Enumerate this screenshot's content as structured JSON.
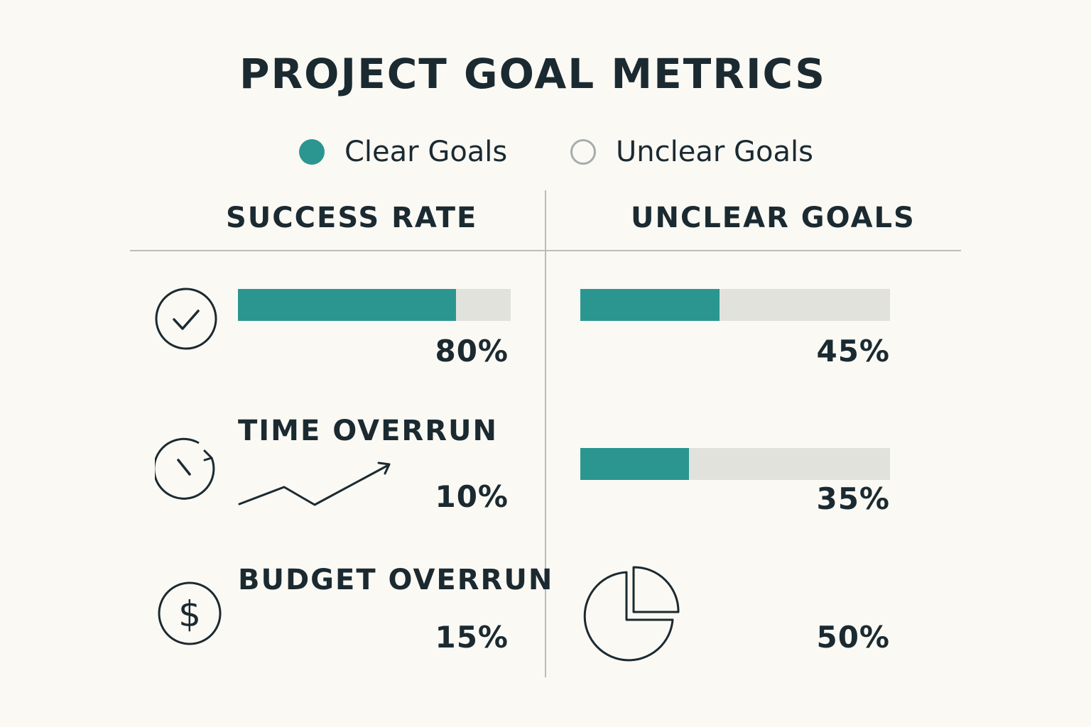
{
  "title": "PROJECT GOAL METRICS",
  "legend": [
    {
      "label": "Clear Goals",
      "style": "filled",
      "color": "#2b9690"
    },
    {
      "label": "Unclear Goals",
      "style": "outline",
      "color": "#a6adab"
    }
  ],
  "columns": {
    "left_header": "SUCCESS RATE",
    "right_header": "UNCLEAR GOALS"
  },
  "colors": {
    "accent": "#2b9690",
    "track": "#e2e2dd",
    "text": "#1b2a31",
    "divider": "#b9bdbb",
    "background": "#fbf9f4"
  },
  "chart_data": {
    "type": "bar",
    "title": "PROJECT GOAL METRICS",
    "categories": [
      "",
      "TIME OVERRUN",
      "BUDGET OVERRUN"
    ],
    "series": [
      {
        "name": "Clear Goals",
        "values": [
          80,
          10,
          15
        ]
      },
      {
        "name": "Unclear Goals",
        "values": [
          45,
          35,
          50
        ]
      }
    ],
    "unit": "%",
    "ylim": [
      0,
      100
    ],
    "rows": [
      {
        "icon": "check-circle-icon",
        "label": "",
        "clear": {
          "value": 80,
          "display": "80%",
          "visual": "bar"
        },
        "unclear": {
          "value": 45,
          "display": "45%",
          "visual": "bar"
        }
      },
      {
        "icon": "clock-refresh-icon",
        "label": "TIME OVERRUN",
        "clear": {
          "value": 10,
          "display": "10%",
          "visual": "trend-arrow"
        },
        "unclear": {
          "value": 35,
          "display": "35%",
          "visual": "bar"
        }
      },
      {
        "icon": "dollar-circle-icon",
        "label": "BUDGET OVERRUN",
        "clear": {
          "value": 15,
          "display": "15%",
          "visual": "none"
        },
        "unclear": {
          "value": 50,
          "display": "50%",
          "visual": "pie-icon"
        }
      }
    ]
  }
}
